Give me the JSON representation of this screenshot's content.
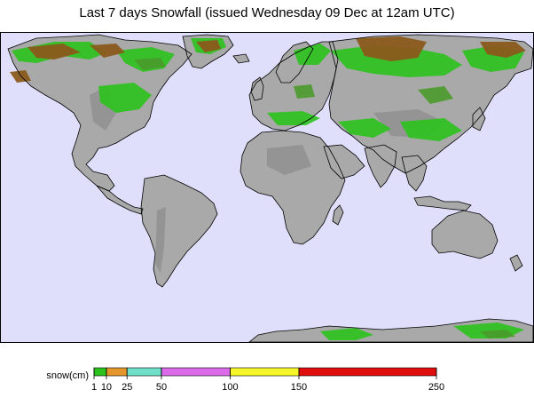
{
  "title": "Last 7 days Snowfall (issued Wednesday 09 Dec at 12am UTC)",
  "map": {
    "ocean_color": "#dfdffb",
    "land_color": "#a9a9a9",
    "land_dark_color": "#8c8c8c",
    "coast_color": "#000000"
  },
  "legend": {
    "label": "snow(cm)",
    "stops": [
      {
        "from": 1,
        "to": 10,
        "color": "#2bc21d"
      },
      {
        "from": 10,
        "to": 25,
        "color": "#e3962b"
      },
      {
        "from": 25,
        "to": 50,
        "color": "#6fe0c7"
      },
      {
        "from": 50,
        "to": 100,
        "color": "#dc6bea"
      },
      {
        "from": 100,
        "to": 150,
        "color": "#f5f52a"
      },
      {
        "from": 150,
        "to": 250,
        "color": "#e00d0d"
      }
    ],
    "ticks": [
      "1",
      "10",
      "25",
      "50",
      "100",
      "150",
      "250"
    ]
  },
  "snow_colors": {
    "light": "#2bc21d",
    "deep": "#8b5a1c",
    "mid": "#4a9a2a"
  }
}
